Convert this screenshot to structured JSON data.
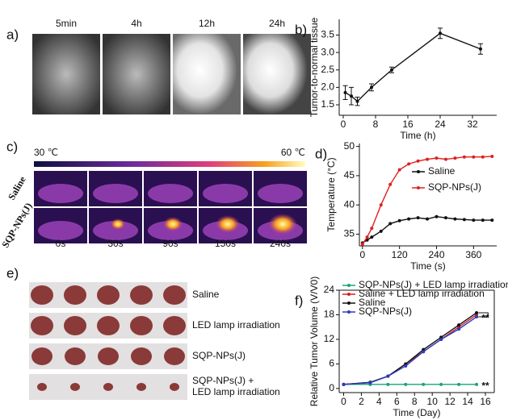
{
  "panels": {
    "a": {
      "label": "a)",
      "times": [
        "5min",
        "4h",
        "12h",
        "24h"
      ]
    },
    "c": {
      "label": "c)",
      "scale_min": "30 ℃",
      "scale_max": "60 ℃",
      "rows": [
        "Saline",
        "SQP-NPs(J)"
      ],
      "times": [
        "0s",
        "30s",
        "90s",
        "150s",
        "240s"
      ]
    },
    "e": {
      "label": "e)",
      "rows": [
        [
          "Saline"
        ],
        [
          "LED lamp irradiation"
        ],
        [
          "SQP-NPs(J)"
        ],
        [
          "SQP-NPs(J) +",
          "LED lamp irradiation"
        ]
      ]
    }
  },
  "chart_data": [
    {
      "type": "line",
      "label": "b)",
      "x_label": "Time (h)",
      "y_label": "Tumor-to-normal tissue",
      "x": [
        0.5,
        2,
        3.5,
        7,
        12,
        24,
        34
      ],
      "series": [
        {
          "color": "#111111",
          "values": [
            1.85,
            1.75,
            1.6,
            2.0,
            2.5,
            3.55,
            3.1
          ],
          "errors": [
            0.2,
            0.25,
            0.12,
            0.1,
            0.08,
            0.15,
            0.15
          ]
        }
      ],
      "xlim": [
        -1,
        38
      ],
      "xticks": [
        0,
        8,
        16,
        24,
        32
      ],
      "ylim": [
        1.2,
        3.95
      ],
      "yticks": [
        {
          "value": 1.5,
          "label": "1.5"
        },
        {
          "value": 2.0,
          "label": "2.0"
        },
        {
          "value": 2.5,
          "label": "2.5"
        },
        {
          "value": 3.0,
          "label": "3.0"
        },
        {
          "value": 3.5,
          "label": "3.5"
        }
      ]
    },
    {
      "type": "line",
      "label": "d)",
      "x_label": "Time (s)",
      "y_label": "Temperature (°C)",
      "legend": "center right",
      "x": [
        0,
        15,
        30,
        60,
        90,
        120,
        150,
        180,
        210,
        240,
        270,
        300,
        330,
        360,
        390,
        420
      ],
      "series": [
        {
          "name": "Saline",
          "color": "#111111",
          "values": [
            33.5,
            34,
            34.5,
            35.5,
            36.8,
            37.3,
            37.6,
            37.8,
            37.6,
            38,
            37.8,
            37.6,
            37.5,
            37.4,
            37.4,
            37.4
          ]
        },
        {
          "name": "SQP-NPs(J)",
          "color": "#e02020",
          "values": [
            33.3,
            34.5,
            36,
            40,
            43.5,
            46,
            47,
            47.5,
            47.8,
            48,
            47.8,
            48,
            48.2,
            48.2,
            48.2,
            48.3
          ]
        }
      ],
      "xlim": [
        -10,
        435
      ],
      "xticks": [
        0,
        120,
        240,
        360
      ],
      "ylim": [
        33,
        50.5
      ],
      "yticks": [
        35,
        40,
        45,
        50
      ]
    },
    {
      "type": "line",
      "label": "f)",
      "x_label": "Time (Day)",
      "y_label": "Relative Tumor Volume (V/V0)",
      "legend": "upper left",
      "x": [
        0,
        3,
        5,
        7,
        9,
        11,
        13,
        15
      ],
      "series": [
        {
          "name": "SQP-NPs(J) + LED lamp irradiation",
          "color": "#1aa37a",
          "values": [
            1,
            1,
            1,
            1,
            1,
            1,
            1,
            1
          ]
        },
        {
          "name": "Saline + LED lamp irradiation",
          "color": "#d42020",
          "values": [
            1,
            1.5,
            3,
            6,
            9,
            12,
            15,
            18
          ]
        },
        {
          "name": "Saline",
          "color": "#111111",
          "values": [
            1,
            1.5,
            3,
            6,
            9.5,
            12.5,
            15.5,
            18.5
          ]
        },
        {
          "name": "SQP-NPs(J)",
          "color": "#2a3cc0",
          "values": [
            1,
            1.4,
            3,
            5.5,
            9,
            12,
            14.5,
            17.5
          ]
        }
      ],
      "annotations": [
        "**",
        "**"
      ],
      "xlim": [
        -0.5,
        17
      ],
      "xticks": [
        0,
        2,
        4,
        6,
        8,
        10,
        12,
        14,
        16
      ],
      "ylim": [
        -1,
        24
      ],
      "yticks": [
        0,
        6,
        12,
        18,
        24
      ]
    }
  ]
}
